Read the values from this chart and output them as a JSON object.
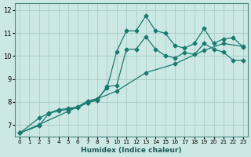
{
  "xlabel": "Humidex (Indice chaleur)",
  "bg_color": "#cce8e4",
  "grid_color": "#aaccc8",
  "line_color": "#1a7a6e",
  "xlim": [
    -0.5,
    23.5
  ],
  "ylim": [
    6.5,
    12.3
  ],
  "xticks": [
    0,
    1,
    2,
    3,
    4,
    5,
    6,
    7,
    8,
    9,
    10,
    11,
    12,
    13,
    14,
    15,
    16,
    17,
    18,
    19,
    20,
    21,
    22,
    23
  ],
  "yticks": [
    7,
    8,
    9,
    10,
    11,
    12
  ],
  "series1_x": [
    0,
    2,
    3,
    4,
    5,
    6,
    7,
    8,
    9,
    10,
    11,
    12,
    13,
    14,
    15,
    16,
    17,
    18,
    19,
    20,
    21,
    22,
    23
  ],
  "series1_y": [
    6.65,
    7.3,
    7.52,
    7.67,
    7.72,
    7.8,
    8.05,
    8.15,
    8.6,
    10.2,
    11.1,
    11.1,
    11.75,
    11.1,
    11.0,
    10.45,
    10.35,
    10.55,
    11.2,
    10.55,
    10.75,
    10.8,
    10.4
  ],
  "series2_x": [
    0,
    2,
    3,
    4,
    5,
    6,
    7,
    8,
    9,
    10,
    11,
    12,
    13,
    14,
    15,
    16,
    17,
    18,
    19,
    20,
    21,
    22,
    23
  ],
  "series2_y": [
    6.65,
    6.97,
    7.5,
    7.62,
    7.68,
    7.75,
    7.98,
    8.07,
    8.68,
    8.72,
    10.3,
    10.3,
    10.85,
    10.3,
    10.02,
    9.92,
    10.16,
    10.07,
    10.55,
    10.3,
    10.17,
    9.82,
    9.82
  ],
  "series3_x": [
    0,
    2,
    5,
    7,
    10,
    13,
    16,
    19,
    21,
    23
  ],
  "series3_y": [
    6.65,
    7.02,
    7.6,
    7.97,
    8.48,
    9.28,
    9.66,
    10.25,
    10.55,
    10.42
  ]
}
